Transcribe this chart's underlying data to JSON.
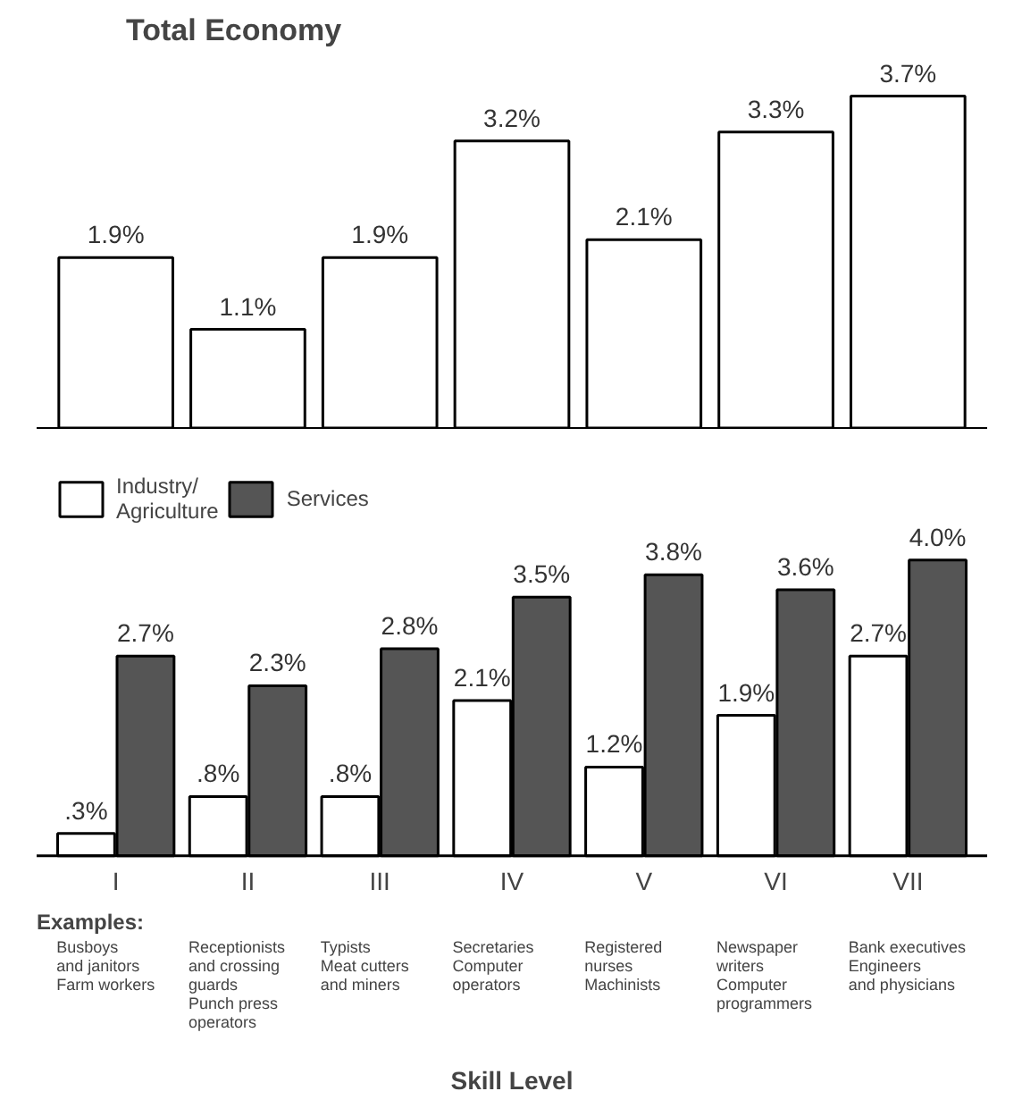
{
  "chart_data": [
    {
      "type": "bar",
      "title": "Total Economy",
      "categories": [
        null,
        null,
        null,
        null,
        null,
        null,
        null
      ],
      "values": [
        1.9,
        1.1,
        1.9,
        3.2,
        2.1,
        3.3,
        3.7
      ],
      "color": "#ffffff",
      "value_labels": [
        "1.9%",
        "1.1%",
        "1.9%",
        "3.2%",
        "2.1%",
        "3.3%",
        "3.7%"
      ]
    },
    {
      "type": "bar",
      "categories": [
        "I",
        "II",
        "III",
        "IV",
        "V",
        "VI",
        "VII"
      ],
      "xlabel": "Skill Level",
      "legend": "top left",
      "series": [
        {
          "name": "Industry/\nAgriculture",
          "color": "#ffffff",
          "values": [
            0.3,
            0.8,
            0.8,
            2.1,
            1.2,
            1.9,
            2.7
          ],
          "value_labels": [
            ".3%",
            ".8%",
            ".8%",
            "2.1%",
            "1.2%",
            "1.9%",
            "2.7%"
          ]
        },
        {
          "name": "Services",
          "color": "#555555",
          "values": [
            2.7,
            2.3,
            2.8,
            3.5,
            3.8,
            3.6,
            4.0
          ],
          "value_labels": [
            "2.7%",
            "2.3%",
            "2.8%",
            "3.5%",
            "3.8%",
            "3.6%",
            "4.0%"
          ]
        }
      ],
      "annotations": [
        "Examples:",
        "Busboys\nand janitors\nFarm workers",
        "Receptionists\nand crossing\nguards\nPunch press\noperators",
        "Typists\nMeat cutters\nand miners",
        "Secretaries\nComputer\noperators",
        "Registered\nnurses\nMachinists",
        "Newspaper\nwriters\nComputer\nprogrammers",
        "Bank executives\nEngineers\nand physicians"
      ]
    }
  ]
}
